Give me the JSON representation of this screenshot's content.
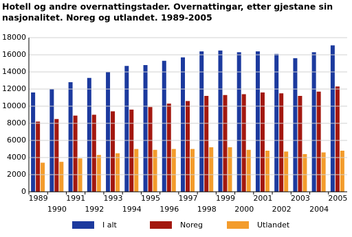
{
  "chart_data": {
    "type": "bar",
    "title": "Hotell og andre overnattingstader. Overnattingar, etter gjestane sin nasjonalitet. Noreg og utlandet. 1989-2005",
    "categories": [
      "1989",
      "1990",
      "1991",
      "1992",
      "1993",
      "1994",
      "1995",
      "1996",
      "1997",
      "1998",
      "1999",
      "2000",
      "2001",
      "2002",
      "2003",
      "2004",
      "2005"
    ],
    "series": [
      {
        "name": "I alt",
        "color": "#1c3a9e",
        "values": [
          11600,
          12000,
          12800,
          13300,
          14000,
          14700,
          14800,
          15300,
          15700,
          16400,
          16500,
          16300,
          16400,
          16100,
          15600,
          16300,
          17100
        ]
      },
      {
        "name": "Noreg",
        "color": "#a3180f",
        "values": [
          8200,
          8500,
          8900,
          9000,
          9400,
          9600,
          9900,
          10300,
          10600,
          11200,
          11300,
          11400,
          11600,
          11500,
          11200,
          11700,
          12300
        ]
      },
      {
        "name": "Utlandet",
        "color": "#f39c2c",
        "values": [
          3400,
          3500,
          3900,
          4300,
          4500,
          5000,
          4900,
          5000,
          5000,
          5200,
          5200,
          4900,
          4800,
          4700,
          4400,
          4600,
          4800
        ]
      }
    ],
    "ylim": [
      0,
      18000
    ],
    "yticks": [
      0,
      2000,
      4000,
      6000,
      8000,
      10000,
      12000,
      14000,
      16000,
      18000
    ],
    "grid": true
  }
}
